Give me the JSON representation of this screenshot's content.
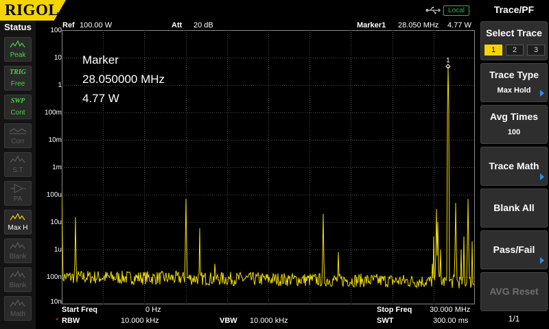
{
  "brand": "RIGOL",
  "top": {
    "remote_status": "Local",
    "icons": [
      "usb-icon"
    ]
  },
  "status_panel": {
    "title": "Status",
    "items": [
      {
        "name": "peak",
        "icon": "peak-wave-icon",
        "label": "Peak",
        "on": true
      },
      {
        "name": "trig",
        "icon": "",
        "top": "TRIG",
        "label": "Free",
        "on": true
      },
      {
        "name": "swp",
        "icon": "",
        "top": "SWP",
        "label": "Cont",
        "on": true
      },
      {
        "name": "corr",
        "icon": "correction-icon",
        "label": "Corr",
        "on": false
      },
      {
        "name": "st",
        "icon": "signal-track-icon",
        "label": "S.T",
        "on": false
      },
      {
        "name": "pa",
        "icon": "preamp-icon",
        "label": "PA",
        "on": false
      },
      {
        "name": "maxh",
        "icon": "maxhold-wave-icon",
        "label": "Max H",
        "on": true
      },
      {
        "name": "blank1",
        "icon": "blank-wave-icon",
        "label": "Blank",
        "on": false
      },
      {
        "name": "blank2",
        "icon": "blank-wave-icon",
        "label": "Blank",
        "on": false
      },
      {
        "name": "math",
        "icon": "math-wave-icon",
        "label": "Math",
        "on": false
      }
    ]
  },
  "header": {
    "ref_label": "Ref",
    "ref_value": "100.00 W",
    "att_label": "Att",
    "att_value": "20 dB",
    "marker_label": "Marker1",
    "marker_freq": "28.050 MHz",
    "marker_value": "4.77 W"
  },
  "y_axis_labels": [
    "100",
    "10",
    "1",
    "100m",
    "10m",
    "1m",
    "100u",
    "10u",
    "1u",
    "100n",
    "10n"
  ],
  "marker_box": {
    "title": "Marker",
    "freq": "28.050000 MHz",
    "value": "4.77 W",
    "marker_number": "1"
  },
  "footer": {
    "start_label": "Start Freq",
    "start_value": "0 Hz",
    "stop_label": "Stop Freq",
    "stop_value": "30.000 MHz",
    "rbw_mark": "*",
    "rbw_label": "RBW",
    "rbw_value": "10.000 kHz",
    "vbw_label": "VBW",
    "vbw_value": "10.000 kHz",
    "swt_label": "SWT",
    "swt_value": "300.00 ms"
  },
  "chart_data": {
    "type": "line",
    "trace_color": "#f5e000",
    "x_range_mhz": [
      0,
      30
    ],
    "y_scale": "log",
    "y_range": [
      1e-08,
      100
    ],
    "noise_floor": 1e-07,
    "peaks": [
      {
        "x": 0.0,
        "y": 0.0001
      },
      {
        "x": 1.0,
        "y": 1.5e-05
      },
      {
        "x": 9.0,
        "y": 7e-05
      },
      {
        "x": 10.0,
        "y": 6e-06
      },
      {
        "x": 11.1,
        "y": 3e-07
      },
      {
        "x": 19.0,
        "y": 2e-05
      },
      {
        "x": 20.1,
        "y": 8e-07
      },
      {
        "x": 26.9,
        "y": 3e-07
      },
      {
        "x": 27.0,
        "y": 3e-06
      },
      {
        "x": 27.2,
        "y": 3e-05
      },
      {
        "x": 27.3,
        "y": 1e-05
      },
      {
        "x": 27.5,
        "y": 1e-06
      },
      {
        "x": 28.05,
        "y": 4.77
      },
      {
        "x": 28.6,
        "y": 5e-05
      },
      {
        "x": 29.0,
        "y": 1e-06
      },
      {
        "x": 29.2,
        "y": 3e-06
      },
      {
        "x": 29.5,
        "y": 7e-05
      },
      {
        "x": 29.8,
        "y": 2e-06
      }
    ],
    "grid": true
  },
  "menu": {
    "title": "Trace/PF",
    "select_trace": {
      "label": "Select Trace",
      "options": [
        "1",
        "2",
        "3"
      ],
      "selected": "1"
    },
    "trace_type": {
      "label": "Trace Type",
      "value": "Max Hold"
    },
    "avg_times": {
      "label": "Avg Times",
      "value": "100"
    },
    "trace_math": {
      "label": "Trace Math"
    },
    "blank_all": {
      "label": "Blank All"
    },
    "pass_fail": {
      "label": "Pass/Fail"
    },
    "avg_reset": {
      "label": "AVG Reset"
    },
    "page": "1/1"
  }
}
